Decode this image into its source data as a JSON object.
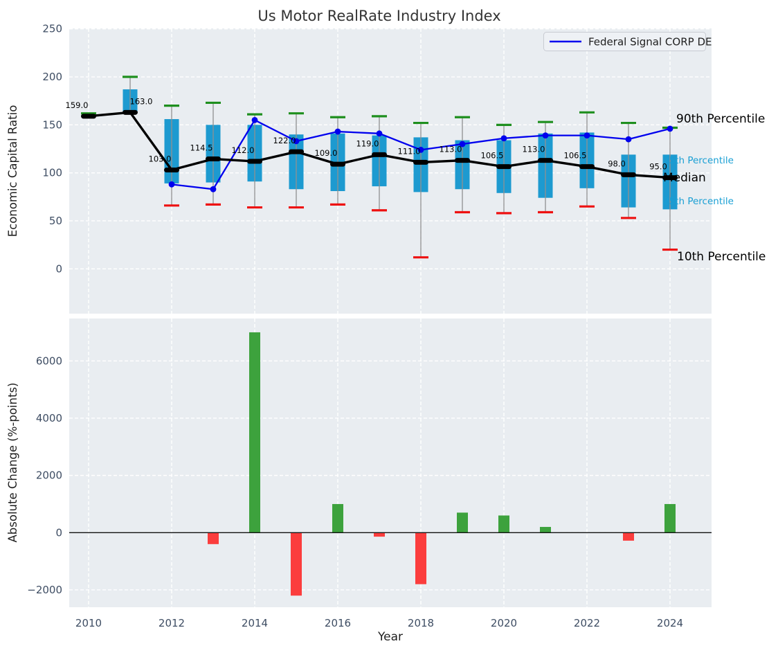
{
  "title": "Us Motor RealRate Industry Index",
  "legend": {
    "label": "Federal Signal CORP DE",
    "line_color": "#0000ee"
  },
  "right_labels": {
    "p90": "90th Percentile",
    "p75": "75th Percentile",
    "median": "Median",
    "p25": "25th Percentile",
    "p10": "10th Percentile"
  },
  "colors": {
    "plot_bg": "#e9edf1",
    "grid": "#ffffff",
    "box_fill": "#1d9ad0",
    "median": "#000000",
    "company_line": "#0000ee",
    "p90_cap": "#1e8f1e",
    "p10_cap": "#ee1111",
    "whisker": "#909090",
    "bar_positive": "#3da23d",
    "bar_negative": "#fb3d3d",
    "tick_text": "#3e4d63"
  },
  "chart_data": [
    {
      "type": "box-whisker+line",
      "title": "Us Motor RealRate Industry Index",
      "ylabel": "Economic Capital Ratio",
      "ylim": [
        -47,
        250
      ],
      "yticks": [
        250,
        200,
        150,
        100,
        50,
        0
      ],
      "grid": true,
      "legend_position": "upper right",
      "x": [
        2010,
        2011,
        2012,
        2013,
        2014,
        2015,
        2016,
        2017,
        2018,
        2019,
        2020,
        2021,
        2022,
        2023,
        2024
      ],
      "p90": [
        162,
        200,
        170,
        173,
        161,
        162,
        158,
        159,
        152,
        158,
        150,
        153,
        163,
        152,
        147
      ],
      "q3": [
        null,
        187,
        156,
        150,
        150,
        140,
        141,
        139,
        137,
        134,
        134,
        141,
        142,
        119,
        119
      ],
      "median": [
        159,
        163,
        103,
        114.5,
        112,
        122,
        109,
        119,
        111,
        113,
        106.5,
        113,
        106.5,
        98,
        95
      ],
      "median_labels": [
        "159.0",
        "163.0",
        "103.0",
        "114.5",
        "112.0",
        "122.0",
        "109.0",
        "119.0",
        "111.0",
        "113.0",
        "106.5",
        "113.0",
        "106.5",
        "98.0",
        "95.0"
      ],
      "q1": [
        null,
        163,
        89,
        90,
        91,
        83,
        81,
        86,
        80,
        83,
        79,
        74,
        84,
        64,
        62
      ],
      "p10": [
        null,
        null,
        66,
        67,
        64,
        64,
        67,
        61,
        12,
        59,
        58,
        59,
        65,
        53,
        20
      ],
      "series": [
        {
          "name": "Federal Signal CORP DE",
          "values": [
            null,
            null,
            88,
            83,
            155,
            133,
            143,
            141,
            124,
            130,
            136,
            139,
            139,
            135,
            146
          ]
        }
      ]
    },
    {
      "type": "bar",
      "xlabel": "Year",
      "ylabel": "Absolute Change (%-points)",
      "ylim": [
        -2600,
        7480
      ],
      "yticks": [
        6000,
        4000,
        2000,
        0,
        -2000
      ],
      "xticks": [
        2010,
        2012,
        2014,
        2016,
        2018,
        2020,
        2022,
        2024
      ],
      "grid": true,
      "x": [
        2010,
        2011,
        2012,
        2013,
        2014,
        2015,
        2016,
        2017,
        2018,
        2019,
        2020,
        2021,
        2022,
        2023,
        2024
      ],
      "values": [
        null,
        null,
        null,
        -400,
        7000,
        -2200,
        1000,
        -140,
        -1800,
        700,
        600,
        200,
        null,
        -280,
        1000
      ]
    }
  ]
}
